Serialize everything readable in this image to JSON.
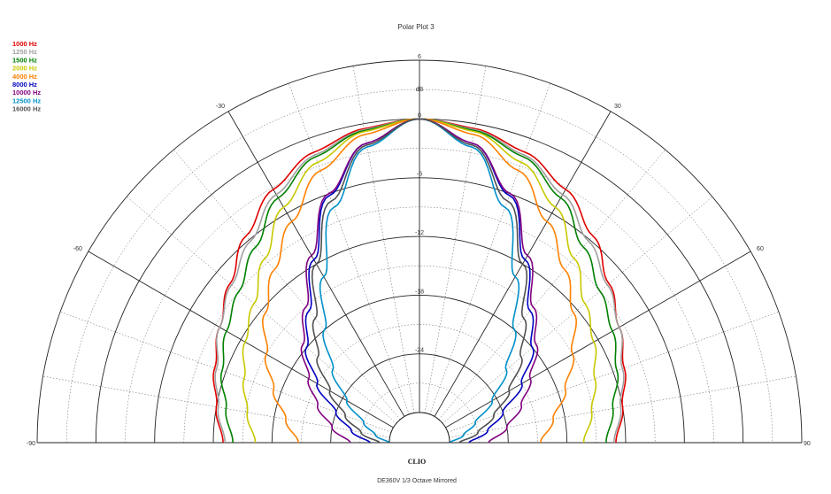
{
  "chart_data": {
    "type": "polar",
    "title": "Polar Plot 3",
    "footer": "DE360V   1/3 Octave   Mirrored",
    "brand": "CLIO",
    "radial_unit": "dB",
    "radial_ticks": [
      "6",
      "0",
      "-6",
      "-12",
      "-18",
      "-24"
    ],
    "radial_range": [
      -30,
      6
    ],
    "angle_range": [
      -90,
      90
    ],
    "angle_ticks": [
      "-90",
      "-60",
      "-30",
      "30",
      "60",
      "90"
    ],
    "grid": true,
    "legend_position": "top-left",
    "series": [
      {
        "name": "1000 Hz",
        "color": "#e00000",
        "angles": [
          0,
          10,
          20,
          30,
          40,
          50,
          60,
          70,
          80,
          90
        ],
        "values": [
          0,
          -0.5,
          -1.5,
          -3.2,
          -5.5,
          -7.8,
          -9.5,
          -10.8,
          -12.0,
          -13.0
        ]
      },
      {
        "name": "1250 Hz",
        "color": "#a0a0a0",
        "angles": [
          0,
          10,
          20,
          30,
          40,
          50,
          60,
          70,
          80,
          90
        ],
        "values": [
          0,
          -0.6,
          -1.8,
          -3.8,
          -6.2,
          -8.0,
          -9.5,
          -11.0,
          -12.2,
          -13.2
        ]
      },
      {
        "name": "1500 Hz",
        "color": "#008000",
        "angles": [
          0,
          10,
          20,
          30,
          40,
          50,
          60,
          70,
          80,
          90
        ],
        "values": [
          0,
          -0.7,
          -2.0,
          -4.2,
          -7.0,
          -9.0,
          -10.3,
          -11.6,
          -13.0,
          -14.0
        ]
      },
      {
        "name": "2000 Hz",
        "color": "#c8c800",
        "angles": [
          0,
          10,
          20,
          30,
          40,
          50,
          60,
          70,
          80,
          90
        ],
        "values": [
          0,
          -0.8,
          -2.6,
          -5.3,
          -8.5,
          -11.0,
          -12.5,
          -14.0,
          -15.2,
          -16.3
        ]
      },
      {
        "name": "4000 Hz",
        "color": "#ff8000",
        "angles": [
          0,
          10,
          20,
          30,
          40,
          50,
          60,
          70,
          80,
          90
        ],
        "values": [
          0,
          -1.1,
          -3.5,
          -7.0,
          -10.0,
          -12.5,
          -15.0,
          -17.2,
          -19.2,
          -20.7
        ]
      },
      {
        "name": "8000 Hz",
        "color": "#0000c0",
        "angles": [
          0,
          10,
          20,
          30,
          40,
          50,
          60,
          70,
          80,
          90
        ],
        "values": [
          0,
          -2.0,
          -6.2,
          -11.5,
          -15.5,
          -18.0,
          -21.0,
          -24.0,
          -26.0,
          -28.0
        ]
      },
      {
        "name": "10000 Hz",
        "color": "#800080",
        "angles": [
          0,
          10,
          20,
          30,
          40,
          50,
          60,
          70,
          80,
          90
        ],
        "values": [
          0,
          -2.0,
          -6.0,
          -11.0,
          -15.0,
          -17.5,
          -20.0,
          -22.0,
          -24.0,
          -26.0
        ]
      },
      {
        "name": "12500 Hz",
        "color": "#0090c8",
        "angles": [
          0,
          10,
          20,
          30,
          40,
          50,
          60,
          70,
          80,
          90
        ],
        "values": [
          0,
          -2.4,
          -7.5,
          -13.5,
          -18.0,
          -21.5,
          -24.5,
          -27.0,
          -28.5,
          -30.0
        ]
      },
      {
        "name": "16000 Hz",
        "color": "#505050",
        "angles": [
          0,
          10,
          20,
          30,
          40,
          50,
          60,
          70,
          80,
          90
        ],
        "values": [
          0,
          -2.2,
          -6.8,
          -12.0,
          -16.5,
          -19.5,
          -22.5,
          -25.0,
          -27.0,
          -29.0
        ]
      }
    ]
  }
}
